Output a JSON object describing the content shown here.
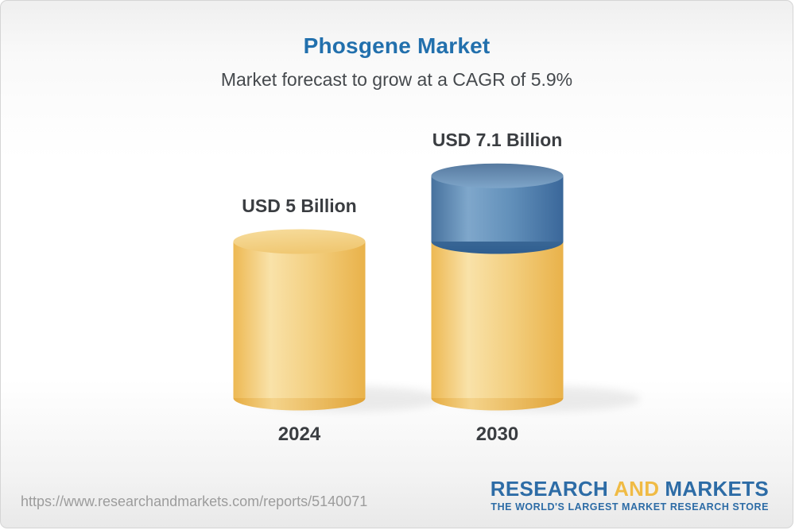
{
  "header": {
    "title": "Phosgene Market",
    "subtitle": "Market forecast to grow at a CAGR of 5.9%"
  },
  "chart_data": {
    "type": "bar",
    "title": "Phosgene Market",
    "subtitle": "Market forecast to grow at a CAGR of 5.9%",
    "unit": "USD Billion",
    "cagr_percent": 5.9,
    "categories": [
      "2024",
      "2030"
    ],
    "values": [
      5,
      7.1
    ],
    "ylim": [
      0,
      8
    ],
    "grid": false,
    "legend": false,
    "bars": [
      {
        "category": "2024",
        "value": 5,
        "value_label": "USD 5 Billion",
        "segments": [
          {
            "color": "yellow",
            "value": 5
          }
        ]
      },
      {
        "category": "2030",
        "value": 7.1,
        "value_label": "USD 7.1 Billion",
        "segments": [
          {
            "color": "yellow",
            "value": 5
          },
          {
            "color": "blue",
            "value": 2.1
          }
        ]
      }
    ],
    "colors": {
      "yellow": "#f0c46a",
      "blue": "#4f7fae",
      "title_blue": "#2270ad",
      "label_gray": "#3a3d41"
    }
  },
  "footer": {
    "url": "https://www.researchandmarkets.com/reports/5140071",
    "logo": {
      "part1": "RESEARCH",
      "part2": "AND",
      "part3": "MARKETS",
      "tagline": "THE WORLD'S LARGEST MARKET RESEARCH STORE"
    }
  }
}
